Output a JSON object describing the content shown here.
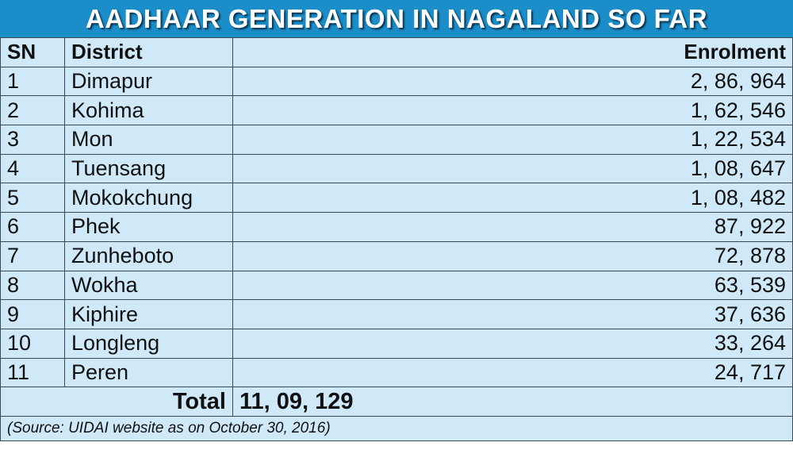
{
  "title": "AADHAAR GENERATION IN NAGALAND SO FAR",
  "table": {
    "header": [
      "SN",
      "District",
      "Enrolment"
    ],
    "rows": [
      [
        "1",
        "Dimapur",
        "2, 86, 964"
      ],
      [
        "2",
        "Kohima",
        "1, 62, 546"
      ],
      [
        "3",
        "Mon",
        "1, 22, 534"
      ],
      [
        "4",
        "Tuensang",
        "1, 08, 647"
      ],
      [
        "5",
        "Mokokchung",
        "1, 08, 482"
      ],
      [
        "6",
        "Phek",
        "87, 922"
      ],
      [
        "7",
        "Zunheboto",
        "72, 878"
      ],
      [
        "8",
        "Wokha",
        "63, 539"
      ],
      [
        "9",
        "Kiphire",
        "37, 636"
      ],
      [
        "10",
        "Longleng",
        "33, 264"
      ],
      [
        "11",
        "Peren",
        "24, 717"
      ]
    ],
    "total_label": "Total",
    "total_value": "11, 09, 129",
    "source": "(Source: UIDAI website as on October 30, 2016)"
  }
}
